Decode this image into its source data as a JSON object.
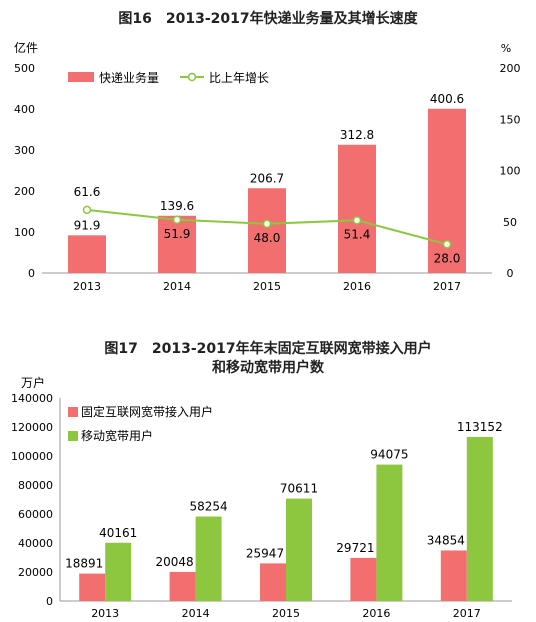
{
  "chart_data": [
    {
      "type": "bar",
      "title": "图16　2013-2017年快递业务量及其增长速度",
      "ylabel_left": "亿件",
      "ylabel_right": "%",
      "categories": [
        "2013",
        "2014",
        "2015",
        "2016",
        "2017"
      ],
      "ylim_left": [
        0,
        500
      ],
      "ylim_right": [
        0,
        200
      ],
      "yticks_left": [
        0,
        100,
        200,
        300,
        400,
        500
      ],
      "yticks_right": [
        0,
        50,
        100,
        150,
        200
      ],
      "legend_position": "top-left",
      "series": [
        {
          "name": "快递业务量",
          "type": "bar",
          "axis": "left",
          "color": "#f36f6f",
          "values": [
            91.9,
            139.6,
            206.7,
            312.8,
            400.6
          ],
          "labels": [
            "91.9",
            "139.6",
            "206.7",
            "312.8",
            "400.6"
          ]
        },
        {
          "name": "比上年增长",
          "type": "line",
          "axis": "right",
          "color": "#8dc63f",
          "values": [
            61.6,
            51.9,
            48.0,
            51.4,
            28.0
          ],
          "labels": [
            "61.6",
            "51.9",
            "48.0",
            "51.4",
            "28.0"
          ]
        }
      ]
    },
    {
      "type": "bar",
      "title_lines": [
        "图17　2013-2017年年末固定互联网宽带接入用户",
        "和移动宽带用户数"
      ],
      "ylabel": "万户",
      "categories": [
        "2013",
        "2014",
        "2015",
        "2016",
        "2017"
      ],
      "ylim": [
        0,
        140000
      ],
      "yticks": [
        0,
        20000,
        40000,
        60000,
        80000,
        100000,
        120000,
        140000
      ],
      "legend_position": "top-left",
      "series": [
        {
          "name": "固定互联网宽带接入用户",
          "color": "#f36f6f",
          "values": [
            18891,
            20048,
            25947,
            29721,
            34854
          ]
        },
        {
          "name": "移动宽带用户",
          "color": "#8dc63f",
          "values": [
            40161,
            58254,
            70611,
            94075,
            113152
          ]
        }
      ]
    }
  ]
}
